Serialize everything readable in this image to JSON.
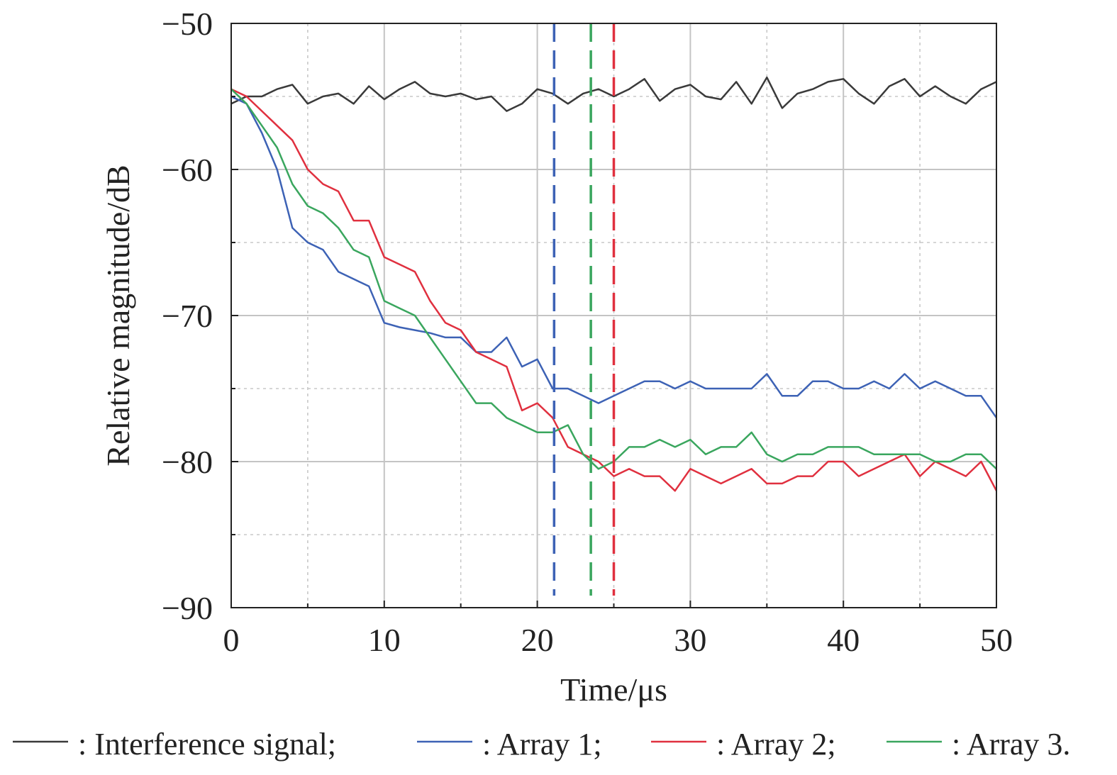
{
  "chart_data": {
    "type": "line",
    "title": "",
    "xlabel": "Time/μs",
    "ylabel": "Relative magnitude/dB",
    "xlim": [
      0,
      50
    ],
    "ylim": [
      -90,
      -50
    ],
    "xticks": [
      0,
      10,
      20,
      30,
      40,
      50
    ],
    "yticks": [
      -90,
      -80,
      -70,
      -60,
      -50
    ],
    "xtick_labels": [
      "0",
      "10",
      "20",
      "30",
      "40",
      "50"
    ],
    "ytick_labels": [
      "−90",
      "−80",
      "−70",
      "−60",
      "−50"
    ],
    "grid": true,
    "legend_placement": "bottom",
    "x": [
      0,
      1,
      2,
      3,
      4,
      5,
      6,
      7,
      8,
      9,
      10,
      11,
      12,
      13,
      14,
      15,
      16,
      17,
      18,
      19,
      20,
      21,
      22,
      23,
      24,
      25,
      26,
      27,
      28,
      29,
      30,
      31,
      32,
      33,
      34,
      35,
      36,
      37,
      38,
      39,
      40,
      41,
      42,
      43,
      44,
      45,
      46,
      47,
      48,
      49,
      50
    ],
    "series": [
      {
        "name": "Interference signal",
        "color": "#3a3a3a",
        "values": [
          -55.5,
          -55,
          -55,
          -54.5,
          -54.2,
          -55.5,
          -55,
          -54.8,
          -55.5,
          -54.3,
          -55.2,
          -54.5,
          -54,
          -54.8,
          -55,
          -54.8,
          -55.2,
          -55,
          -56,
          -55.5,
          -54.5,
          -54.8,
          -55.5,
          -54.8,
          -54.5,
          -55,
          -54.5,
          -53.8,
          -55.3,
          -54.5,
          -54.2,
          -55,
          -55.2,
          -54,
          -55.5,
          -53.7,
          -55.8,
          -54.8,
          -54.5,
          -54,
          -53.8,
          -54.8,
          -55.5,
          -54.3,
          -53.8,
          -55,
          -54.3,
          -55,
          -55.5,
          -54.5,
          -54
        ]
      },
      {
        "name": "Array 1",
        "color": "#3d62b5",
        "values": [
          -55,
          -55.5,
          -57.5,
          -60,
          -64,
          -65,
          -65.5,
          -67,
          -67.5,
          -68,
          -70.5,
          -70.8,
          -71,
          -71.2,
          -71.5,
          -71.5,
          -72.5,
          -72.5,
          -71.5,
          -73.5,
          -73,
          -75,
          -75,
          -75.5,
          -76,
          -75.5,
          -75,
          -74.5,
          -74.5,
          -75,
          -74.5,
          -75,
          -75,
          -75,
          -75,
          -74,
          -75.5,
          -75.5,
          -74.5,
          -74.5,
          -75,
          -75,
          -74.5,
          -75,
          -74,
          -75,
          -74.5,
          -75,
          -75.5,
          -75.5,
          -77
        ]
      },
      {
        "name": "Array 2",
        "color": "#e0303f",
        "values": [
          -54.5,
          -55,
          -56,
          -57,
          -58,
          -60,
          -61,
          -61.5,
          -63.5,
          -63.5,
          -66,
          -66.5,
          -67,
          -69,
          -70.5,
          -71,
          -72.5,
          -73,
          -73.5,
          -76.5,
          -76,
          -77,
          -79,
          -79.5,
          -80,
          -81,
          -80.5,
          -81,
          -81,
          -82,
          -80.5,
          -81,
          -81.5,
          -81,
          -80.5,
          -81.5,
          -81.5,
          -81,
          -81,
          -80,
          -80,
          -81,
          -80.5,
          -80,
          -79.5,
          -81,
          -80,
          -80.5,
          -81,
          -80,
          -82
        ]
      },
      {
        "name": "Array 3",
        "color": "#3aa65e",
        "values": [
          -54.5,
          -55.5,
          -57,
          -58.5,
          -61,
          -62.5,
          -63,
          -64,
          -65.5,
          -66,
          -69,
          -69.5,
          -70,
          -71.5,
          -73,
          -74.5,
          -76,
          -76,
          -77,
          -77.5,
          -78,
          -78,
          -77.5,
          -79.5,
          -80.5,
          -80,
          -79,
          -79,
          -78.5,
          -79,
          -78.5,
          -79.5,
          -79,
          -79,
          -78,
          -79.5,
          -80,
          -79.5,
          -79.5,
          -79,
          -79,
          -79,
          -79.5,
          -79.5,
          -79.5,
          -79.5,
          -80,
          -80,
          -79.5,
          -79.5,
          -80.5
        ]
      }
    ],
    "vertical_markers": [
      {
        "x": 21.1,
        "color": "#3d62b5",
        "style": "dashed"
      },
      {
        "x": 23.5,
        "color": "#3aa65e",
        "style": "dashed"
      },
      {
        "x": 25.0,
        "color": "#e0303f",
        "style": "dashed"
      }
    ],
    "legend": [
      {
        "label": ": Interference signal;",
        "color": "#3a3a3a"
      },
      {
        "label": ": Array 1;",
        "color": "#3d62b5"
      },
      {
        "label": ": Array 2;",
        "color": "#e0303f"
      },
      {
        "label": ": Array 3.",
        "color": "#3aa65e"
      }
    ]
  }
}
